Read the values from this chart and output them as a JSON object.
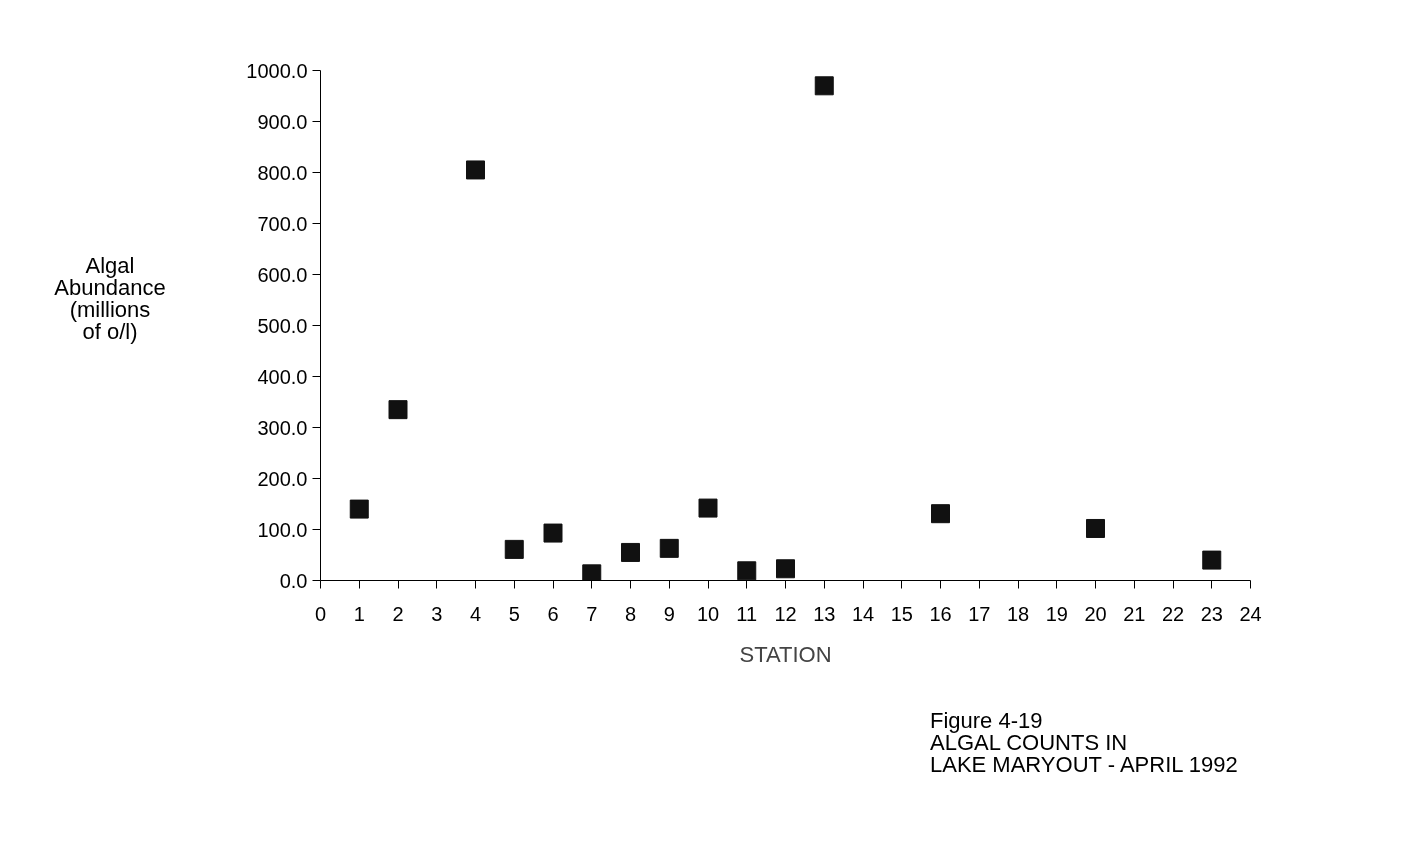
{
  "chart_data": {
    "type": "scatter",
    "xlabel": "STATION",
    "ylabel": "Algal\nAbundance\n(millions\nof o/l)",
    "x": [
      1,
      2,
      4,
      5,
      6,
      7,
      8,
      9,
      10,
      11,
      12,
      13,
      16,
      20,
      23
    ],
    "series": [
      {
        "color": "#111111",
        "values": [
          140,
          335,
          805,
          61,
          93,
          13,
          55,
          63,
          142,
          19,
          23,
          970,
          131,
          102,
          40
        ]
      }
    ],
    "marker": "square",
    "grid": false,
    "xlim": [
      0,
      24
    ],
    "xticks": [
      0,
      1,
      2,
      3,
      4,
      5,
      6,
      7,
      8,
      9,
      10,
      11,
      12,
      13,
      14,
      15,
      16,
      17,
      18,
      19,
      20,
      21,
      22,
      23,
      24
    ],
    "ylim": [
      0,
      1000
    ],
    "yticks": [
      {
        "value": 0,
        "label": "0.0"
      },
      {
        "value": 100,
        "label": "100.0"
      },
      {
        "value": 200,
        "label": "200.0"
      },
      {
        "value": 300,
        "label": "300.0"
      },
      {
        "value": 400,
        "label": "400.0"
      },
      {
        "value": 500,
        "label": "500.0"
      },
      {
        "value": 600,
        "label": "600.0"
      },
      {
        "value": 700,
        "label": "700.0"
      },
      {
        "value": 800,
        "label": "800.0"
      },
      {
        "value": 900,
        "label": "900.0"
      },
      {
        "value": 1000,
        "label": "1000.0"
      }
    ],
    "annotations": [
      "Figure 4-19\nALGAL COUNTS IN\nLAKE MARYOUT - APRIL 1992"
    ]
  }
}
